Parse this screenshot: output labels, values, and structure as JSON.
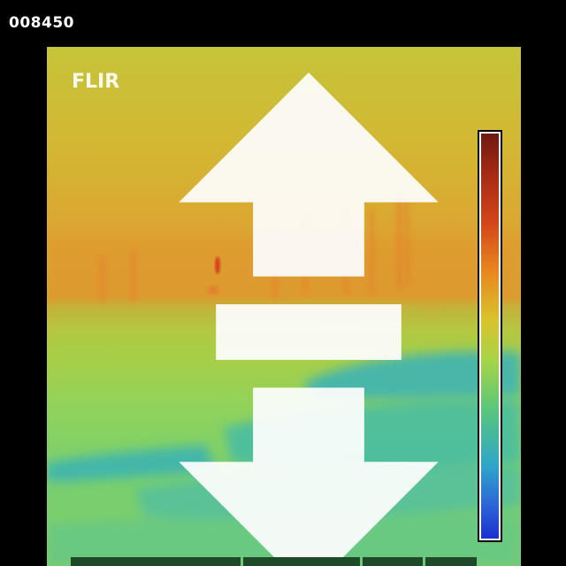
{
  "frame_counter": "008450",
  "logo": {
    "text": "FLIR",
    "icon": "flir-logo-icon"
  },
  "colors": {
    "background": "#000000",
    "warm": "#e8871f",
    "mid": "#a7d447",
    "cool": "#2fa6c9",
    "colorbar_top": "#6e1a12",
    "colorbar_bottom": "#1a2fd0"
  },
  "colorbar": {
    "icon": "thermal-scale-bar"
  }
}
